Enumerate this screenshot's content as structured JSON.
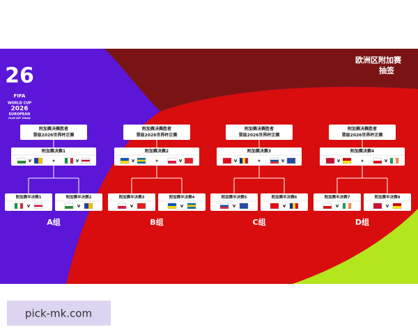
{
  "logo": {
    "number": "26",
    "brand": "FIFA",
    "lines": [
      "WORLD CUP",
      "2026",
      "EUROPEAN",
      "PLAY-OFF DRAW"
    ]
  },
  "title": [
    "欧洲区附加赛",
    "抽签"
  ],
  "versus": "v",
  "groups": [
    {
      "winner": [
        "附加赛决赛胜者",
        "晋级2026世界杯正赛"
      ],
      "final": "附加赛决赛1",
      "semis": [
        "附加赛半决赛1",
        "附加赛半决赛2"
      ],
      "label": "A组"
    },
    {
      "winner": [
        "附加赛决赛胜者",
        "晋级2026世界杯正赛"
      ],
      "final": "附加赛决赛2",
      "semis": [
        "附加赛半决赛3",
        "附加赛半决赛4"
      ],
      "label": "B组"
    },
    {
      "winner": [
        "附加赛决赛胜者",
        "晋级2026世界杯正赛"
      ],
      "final": "附加赛决赛3",
      "semis": [
        "附加赛半决赛5",
        "附加赛半决赛6"
      ],
      "label": "C组"
    },
    {
      "winner": [
        "附加赛决赛胜者",
        "晋级2026世界杯正赛"
      ],
      "final": "附加赛决赛4",
      "semis": [
        "附加赛半决赛7",
        "附加赛半决赛8"
      ],
      "label": "D组"
    }
  ],
  "watermark": "pick-mk.com"
}
